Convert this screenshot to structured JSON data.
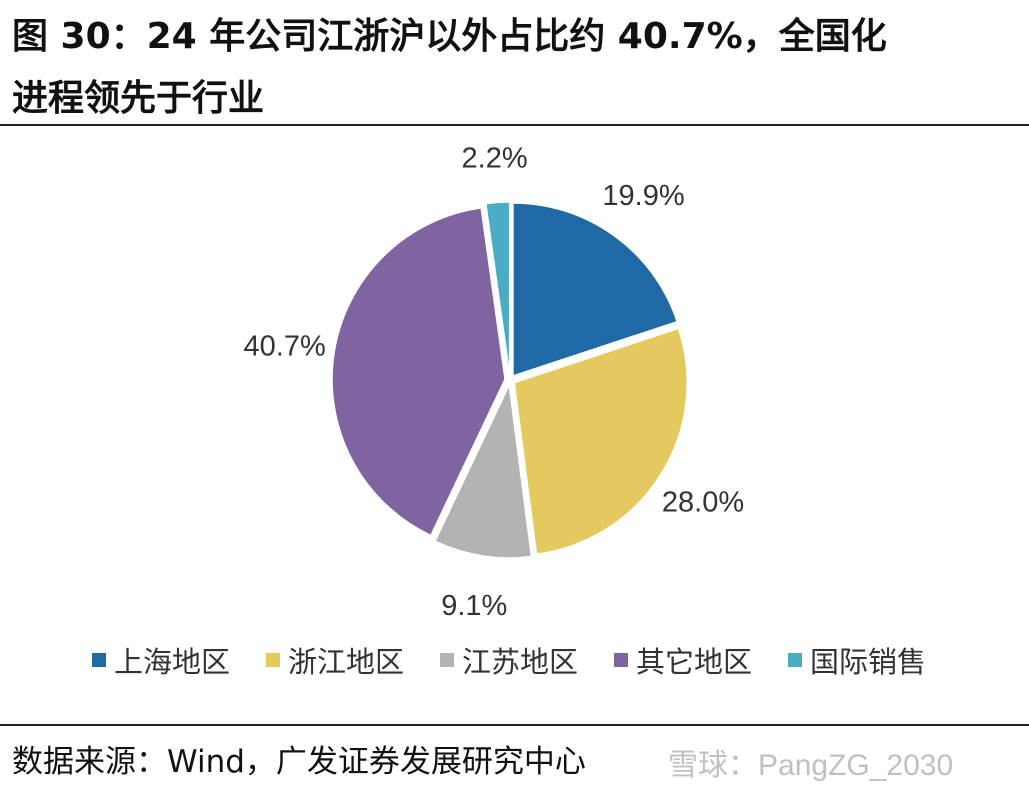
{
  "header": {
    "title_line1": "图 30：24 年公司江浙沪以外占比约 40.7%，全国化",
    "title_line2": "进程领先于行业"
  },
  "chart_data": {
    "type": "pie",
    "categories": [
      "上海地区",
      "浙江地区",
      "江苏地区",
      "其它地区",
      "国际销售"
    ],
    "values": [
      19.9,
      28.0,
      9.1,
      40.7,
      2.2
    ],
    "data_labels": [
      "19.9%",
      "28.0%",
      "9.1%",
      "40.7%",
      "2.2%"
    ],
    "colors": [
      "#1f6aa5",
      "#e4c95f",
      "#b3b3b3",
      "#8064a2",
      "#4bacc6"
    ],
    "legend_position": "bottom",
    "start_angle_deg": 0,
    "direction": "clockwise"
  },
  "legend": {
    "items": [
      {
        "label": "上海地区",
        "color": "#1f6aa5"
      },
      {
        "label": "浙江地区",
        "color": "#e4c95f"
      },
      {
        "label": "江苏地区",
        "color": "#b3b3b3"
      },
      {
        "label": "其它地区",
        "color": "#8064a2"
      },
      {
        "label": "国际销售",
        "color": "#4bacc6"
      }
    ]
  },
  "footer": {
    "source": "数据来源：Wind，广发证券发展研究中心",
    "watermark": "雪球：PangZG_2030"
  }
}
